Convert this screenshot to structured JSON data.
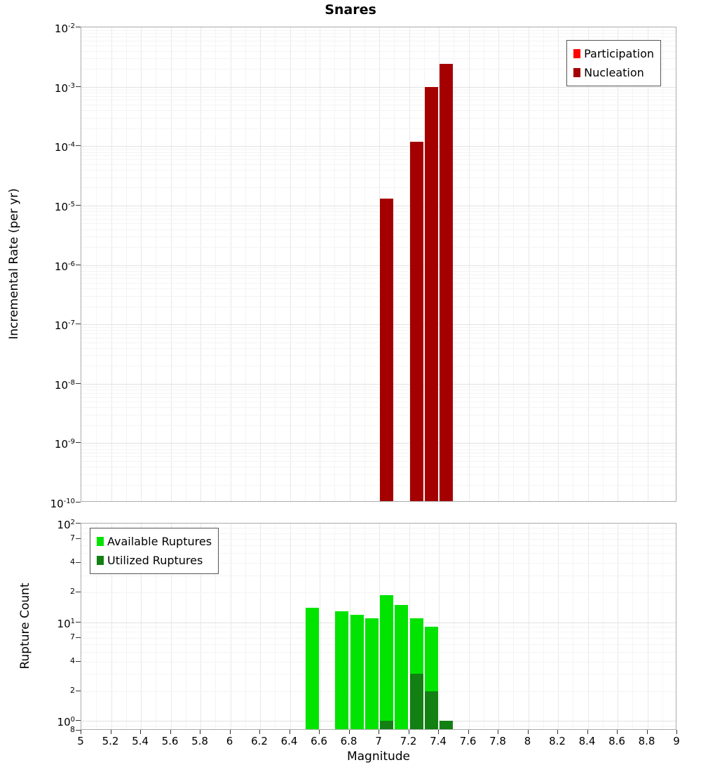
{
  "title": "Snares",
  "colors": {
    "participation": "#ff0000",
    "nucleation": "#a40000",
    "available_ruptures": "#00e400",
    "utilized_ruptures": "#128012"
  },
  "x_axis": {
    "label": "Magnitude",
    "ticks": [
      "5",
      "5.2",
      "5.4",
      "5.6",
      "5.8",
      "6",
      "6.2",
      "6.4",
      "6.6",
      "6.8",
      "7",
      "7.2",
      "7.4",
      "7.6",
      "7.8",
      "8",
      "8.2",
      "8.4",
      "8.6",
      "8.8",
      "9"
    ]
  },
  "top_panel": {
    "ylabel": "Incremental Rate (per yr)",
    "ytick_exponents": [
      -2,
      -3,
      -4,
      -5,
      -6,
      -7,
      -8,
      -9,
      -10
    ],
    "legend": [
      {
        "label": "Participation",
        "color": "#ff0000"
      },
      {
        "label": "Nucleation",
        "color": "#a40000"
      }
    ]
  },
  "bottom_panel": {
    "ylabel": "Rupture Count",
    "yticks": [
      {
        "v": 100,
        "base": "10",
        "exp": "2"
      },
      {
        "v": 70,
        "base": "7"
      },
      {
        "v": 40,
        "base": "4"
      },
      {
        "v": 20,
        "base": "2"
      },
      {
        "v": 10,
        "base": "10",
        "exp": "1"
      },
      {
        "v": 7,
        "base": "7"
      },
      {
        "v": 4,
        "base": "4"
      },
      {
        "v": 2,
        "base": "2"
      },
      {
        "v": 1,
        "base": "10",
        "exp": "0"
      },
      {
        "v": 0.8,
        "base": "8"
      }
    ],
    "legend": [
      {
        "label": "Available Ruptures",
        "color": "#00e400"
      },
      {
        "label": "Utilized Ruptures",
        "color": "#128012"
      }
    ]
  },
  "chart_data": [
    {
      "type": "bar",
      "title": "Snares",
      "xlabel": "Magnitude",
      "ylabel": "Incremental Rate (per yr)",
      "x_axis_range": [
        5,
        9
      ],
      "y_axis_range": [
        1e-10,
        0.01
      ],
      "y_scale": "log",
      "bar_width_magnitude": 0.1,
      "grid": true,
      "legend_position": "top-right",
      "series": [
        {
          "name": "Participation",
          "color": "#ff0000",
          "x": [],
          "values": []
        },
        {
          "name": "Nucleation",
          "color": "#a40000",
          "x": [
            7.05,
            7.25,
            7.35,
            7.45
          ],
          "values": [
            1.3e-05,
            0.00012,
            0.001,
            0.0024
          ]
        }
      ]
    },
    {
      "type": "bar",
      "title": "",
      "xlabel": "Magnitude",
      "ylabel": "Rupture Count",
      "x_axis_range": [
        5,
        9
      ],
      "y_axis_range": [
        0.8,
        100
      ],
      "y_scale": "log",
      "bar_width_magnitude": 0.1,
      "grid": true,
      "legend_position": "top-left",
      "series": [
        {
          "name": "Available Ruptures",
          "color": "#00e400",
          "x": [
            6.55,
            6.75,
            6.85,
            6.95,
            7.05,
            7.15,
            7.25,
            7.35
          ],
          "values": [
            14,
            13,
            12,
            11,
            19,
            15,
            11,
            9
          ]
        },
        {
          "name": "Utilized Ruptures",
          "color": "#128012",
          "x": [
            7.05,
            7.25,
            7.35,
            7.45
          ],
          "values": [
            1,
            3,
            2,
            1
          ]
        }
      ]
    }
  ]
}
